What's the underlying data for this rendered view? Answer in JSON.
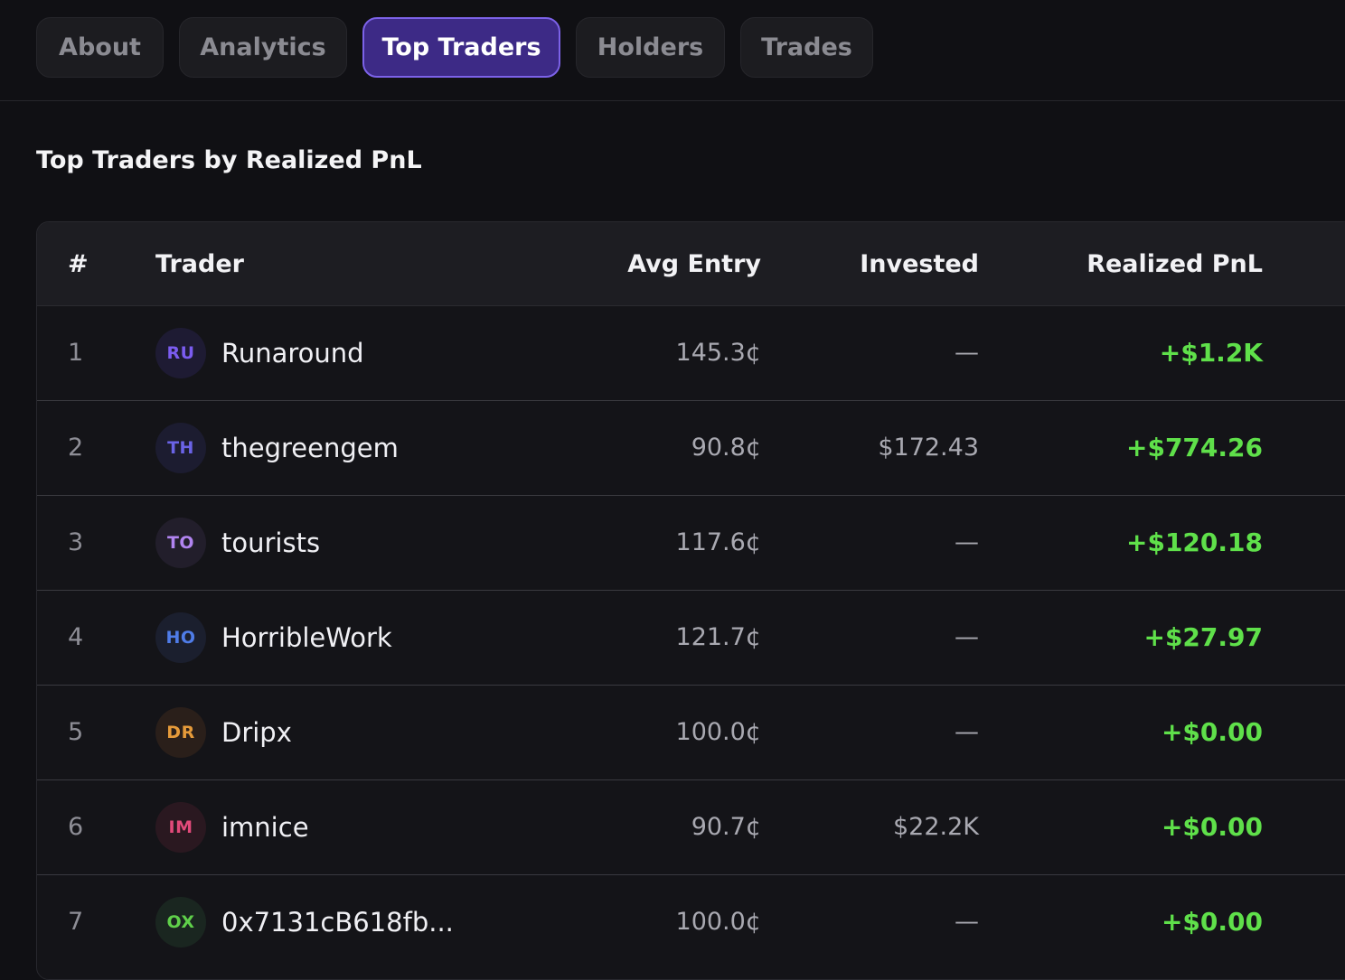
{
  "tabs": [
    {
      "label": "About",
      "active": false
    },
    {
      "label": "Analytics",
      "active": false
    },
    {
      "label": "Top Traders",
      "active": true
    },
    {
      "label": "Holders",
      "active": false
    },
    {
      "label": "Trades",
      "active": false
    }
  ],
  "section_title": "Top Traders by Realized PnL",
  "table": {
    "columns": [
      "#",
      "Trader",
      "Avg Entry",
      "Invested",
      "Realized PnL"
    ],
    "rows": [
      {
        "rank": "1",
        "initials": "RU",
        "name": "Runaround",
        "avg_entry": "145.3¢",
        "invested": "—",
        "realized_pnl": "+$1.2K"
      },
      {
        "rank": "2",
        "initials": "TH",
        "name": "thegreengem",
        "avg_entry": "90.8¢",
        "invested": "$172.43",
        "realized_pnl": "+$774.26"
      },
      {
        "rank": "3",
        "initials": "TO",
        "name": "tourists",
        "avg_entry": "117.6¢",
        "invested": "—",
        "realized_pnl": "+$120.18"
      },
      {
        "rank": "4",
        "initials": "HO",
        "name": "HorribleWork",
        "avg_entry": "121.7¢",
        "invested": "—",
        "realized_pnl": "+$27.97"
      },
      {
        "rank": "5",
        "initials": "DR",
        "name": "Dripx",
        "avg_entry": "100.0¢",
        "invested": "—",
        "realized_pnl": "+$0.00"
      },
      {
        "rank": "6",
        "initials": "IM",
        "name": "imnice",
        "avg_entry": "90.7¢",
        "invested": "$22.2K",
        "realized_pnl": "+$0.00"
      },
      {
        "rank": "7",
        "initials": "OX",
        "name": "0x7131cB618fb...",
        "avg_entry": "100.0¢",
        "invested": "—",
        "realized_pnl": "+$0.00"
      }
    ]
  },
  "colors": {
    "background": "#101014",
    "active_tab": "#3d2a86",
    "active_tab_border": "#7c62e8",
    "pnl_positive": "#5fe04a",
    "avatars": {
      "RU": {
        "bg": "#1e1b33",
        "fg": "#7b5cf0"
      },
      "TH": {
        "bg": "#1c1c30",
        "fg": "#6a63e6"
      },
      "TO": {
        "bg": "#221e2b",
        "fg": "#b184f0"
      },
      "HO": {
        "bg": "#1b1f2e",
        "fg": "#4f7ce8"
      },
      "DR": {
        "bg": "#2a1f1a",
        "fg": "#e59a3a"
      },
      "IM": {
        "bg": "#2a1820",
        "fg": "#e24a7a"
      },
      "OX": {
        "bg": "#1a2620",
        "fg": "#5fd04a"
      }
    }
  }
}
